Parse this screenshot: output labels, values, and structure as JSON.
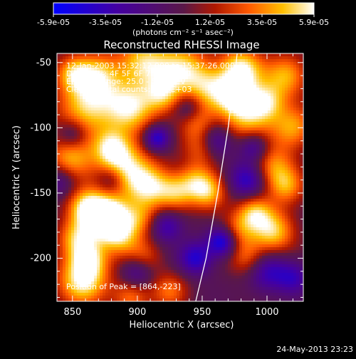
{
  "chart_data": {
    "type": "heatmap",
    "title": "Reconstructed RHESSI Image",
    "xlabel": "Heliocentric X (arcsec)",
    "ylabel": "Heliocentric Y (arcsec)",
    "xlim": [
      838,
      1028
    ],
    "ylim": [
      -233,
      -43
    ],
    "x_ticks": [
      850,
      900,
      950,
      1000
    ],
    "y_ticks": [
      -50,
      -100,
      -150,
      -200
    ],
    "colorbar": {
      "range": [
        -5.9e-05,
        5.9e-05
      ],
      "tick_labels": [
        "-5.9e-05",
        "-3.5e-05",
        "-1.2e-05",
        "1.2e-05",
        "3.5e-05",
        "5.9e-05"
      ],
      "unit_label": "(photons cm⁻² s⁻¹ asec⁻²)"
    },
    "annotations": {
      "time_range": "12-Jan-2003 15:32:12.000 to 15:37:26.000",
      "detectors": "Detectors: 4F 5F 6F 7F 8F, Att 0",
      "energy_range": "Energy Range: 25.0 - 50.0 keV",
      "method_counts": "Clean     Total counts: 3.03E+03",
      "peak_position": "Position of Peak = [864,-223]"
    },
    "peak": [
      864,
      -223
    ],
    "limb_curve": [
      [
        945,
        -233
      ],
      [
        953,
        -200
      ],
      [
        962,
        -150
      ],
      [
        970,
        -100
      ],
      [
        975,
        -60
      ],
      [
        977,
        -43
      ]
    ],
    "emission_sources": [
      [
        858,
        -217,
        1.0,
        14
      ],
      [
        862,
        -200,
        0.7,
        10
      ],
      [
        852,
        -185,
        0.6,
        10
      ],
      [
        872,
        -168,
        0.95,
        14
      ],
      [
        860,
        -160,
        0.6,
        10
      ],
      [
        880,
        -170,
        0.7,
        10
      ],
      [
        888,
        -185,
        0.55,
        10
      ],
      [
        902,
        -170,
        0.55,
        10
      ],
      [
        905,
        -200,
        0.55,
        10
      ],
      [
        848,
        -125,
        0.75,
        13
      ],
      [
        890,
        -130,
        0.9,
        14
      ],
      [
        880,
        -115,
        0.7,
        10
      ],
      [
        860,
        -85,
        0.85,
        16
      ],
      [
        870,
        -60,
        0.75,
        13
      ],
      [
        850,
        -58,
        0.6,
        10
      ],
      [
        895,
        -85,
        0.9,
        14
      ],
      [
        905,
        -50,
        0.85,
        14
      ],
      [
        920,
        -75,
        0.65,
        10
      ],
      [
        935,
        -55,
        0.85,
        14
      ],
      [
        955,
        -70,
        0.7,
        12
      ],
      [
        980,
        -55,
        1.0,
        12
      ],
      [
        975,
        -75,
        0.7,
        10
      ],
      [
        985,
        -90,
        0.85,
        14
      ],
      [
        1000,
        -80,
        0.6,
        10
      ],
      [
        1015,
        -60,
        0.75,
        12
      ],
      [
        1020,
        -100,
        0.7,
        12
      ],
      [
        1005,
        -130,
        0.65,
        12
      ],
      [
        1015,
        -145,
        0.6,
        10
      ],
      [
        990,
        -165,
        0.75,
        10
      ],
      [
        1005,
        -180,
        0.85,
        12
      ],
      [
        975,
        -180,
        0.55,
        10
      ],
      [
        985,
        -200,
        0.55,
        10
      ],
      [
        910,
        -145,
        0.85,
        12
      ],
      [
        930,
        -150,
        0.65,
        10
      ],
      [
        945,
        -140,
        0.55,
        10
      ],
      [
        955,
        -150,
        0.7,
        10
      ],
      [
        945,
        -95,
        0.55,
        10
      ],
      [
        950,
        -115,
        0.55,
        10
      ],
      [
        925,
        -225,
        0.55,
        10
      ],
      [
        895,
        -230,
        0.6,
        10
      ]
    ],
    "negative_sources": [
      [
        966,
        -187,
        -1.0,
        8
      ],
      [
        915,
        -108,
        -0.8,
        7
      ],
      [
        922,
        -175,
        -0.6,
        9
      ],
      [
        900,
        -210,
        -0.6,
        9
      ],
      [
        945,
        -200,
        -0.7,
        9
      ],
      [
        985,
        -140,
        -0.7,
        10
      ],
      [
        840,
        -140,
        -0.5,
        9
      ],
      [
        880,
        -140,
        -0.5,
        8
      ],
      [
        960,
        -110,
        -0.6,
        9
      ],
      [
        1000,
        -210,
        -0.6,
        11
      ],
      [
        850,
        -105,
        -0.5,
        8
      ],
      [
        940,
        -85,
        -0.5,
        8
      ],
      [
        1020,
        -215,
        -0.5,
        9
      ],
      [
        990,
        -115,
        -0.6,
        8
      ]
    ]
  },
  "footer": {
    "timestamp": "24-May-2013 23:23"
  }
}
